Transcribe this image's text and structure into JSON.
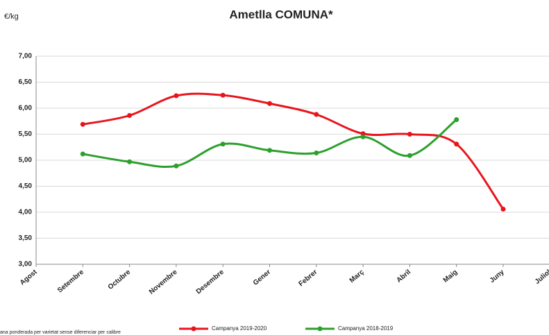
{
  "chart_data": {
    "type": "line",
    "title": "Ametlla COMUNA*",
    "y_label": "€/kg",
    "note": "ana ponderada per varietat sense diferenciar per calibre",
    "categories": [
      "Agost",
      "Setembre",
      "Octubre",
      "Novembre",
      "Desembre",
      "Gener",
      "Febrer",
      "Març",
      "Abril",
      "Maig",
      "Juny",
      "Juliol"
    ],
    "series": [
      {
        "name": "Campanya 2019-2020",
        "color": "#e8141c",
        "values": [
          null,
          5.69,
          5.86,
          6.24,
          6.25,
          6.09,
          5.88,
          5.51,
          5.5,
          5.31,
          4.06,
          null
        ]
      },
      {
        "name": "Campanya 2018-2019",
        "color": "#2ca02c",
        "values": [
          null,
          5.12,
          4.97,
          4.89,
          5.31,
          5.19,
          5.14,
          5.45,
          5.09,
          5.78,
          null,
          null
        ]
      }
    ],
    "ylim": [
      3,
      7
    ],
    "yticks": [
      {
        "value": 3,
        "label": "3,00"
      },
      {
        "value": 3.5,
        "label": "3,50"
      },
      {
        "value": 4,
        "label": "4,00"
      },
      {
        "value": 4.5,
        "label": "4,50"
      },
      {
        "value": 5,
        "label": "5,00"
      },
      {
        "value": 5.5,
        "label": "5,50"
      },
      {
        "value": 6,
        "label": "6,00"
      },
      {
        "value": 6.5,
        "label": "6,50"
      },
      {
        "value": 7,
        "label": "7,00"
      }
    ],
    "grid": true,
    "legend": "bottom"
  }
}
